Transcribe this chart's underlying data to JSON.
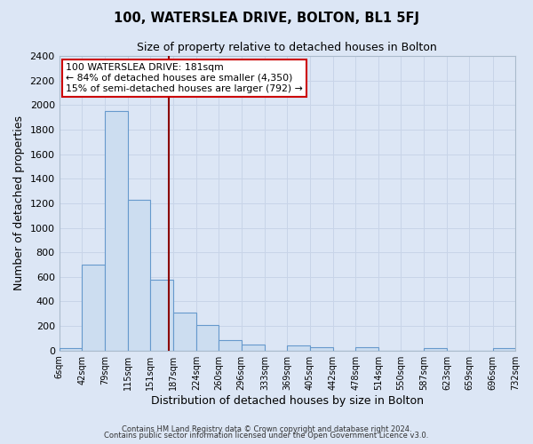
{
  "title_line1": "100, WATERSLEA DRIVE, BOLTON, BL1 5FJ",
  "title_line2": "Size of property relative to detached houses in Bolton",
  "xlabel": "Distribution of detached houses by size in Bolton",
  "ylabel": "Number of detached properties",
  "bin_edges": [
    6,
    42,
    79,
    115,
    151,
    187,
    224,
    260,
    296,
    333,
    369,
    405,
    442,
    478,
    514,
    550,
    587,
    623,
    659,
    696,
    732
  ],
  "bin_heights": [
    20,
    700,
    1950,
    1230,
    580,
    310,
    210,
    85,
    50,
    0,
    40,
    25,
    0,
    30,
    0,
    0,
    20,
    0,
    0,
    20
  ],
  "bar_facecolor": "#ccddf0",
  "bar_edgecolor": "#6699cc",
  "vline_x": 181,
  "vline_color": "#8b0000",
  "annotation_title": "100 WATERSLEA DRIVE: 181sqm",
  "annotation_line1": "← 84% of detached houses are smaller (4,350)",
  "annotation_line2": "15% of semi-detached houses are larger (792) →",
  "annotation_box_edgecolor": "#cc0000",
  "annotation_box_facecolor": "#ffffff",
  "ylim": [
    0,
    2400
  ],
  "yticks": [
    0,
    200,
    400,
    600,
    800,
    1000,
    1200,
    1400,
    1600,
    1800,
    2000,
    2200,
    2400
  ],
  "grid_color": "#c8d4e8",
  "background_color": "#dce6f5",
  "footnote1": "Contains HM Land Registry data © Crown copyright and database right 2024.",
  "footnote2": "Contains public sector information licensed under the Open Government Licence v3.0."
}
